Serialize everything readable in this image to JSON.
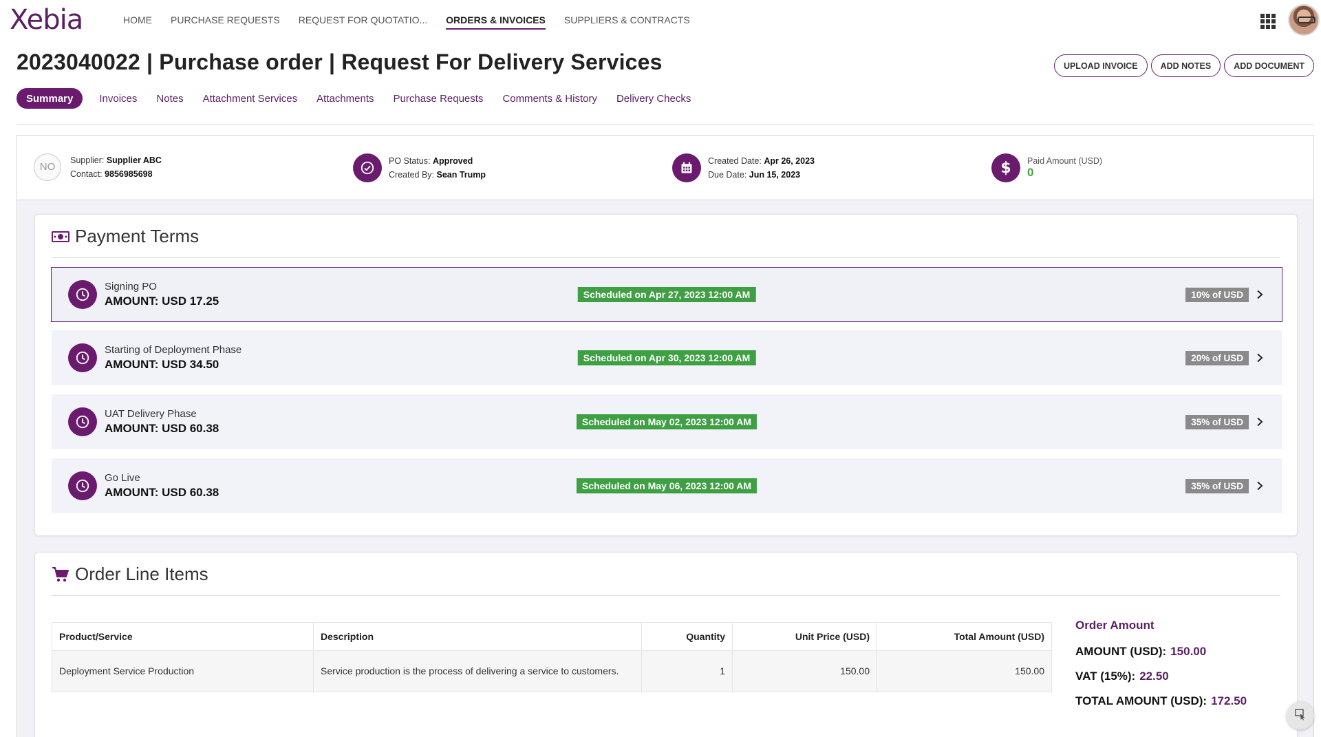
{
  "brand": {
    "logo_text": "Xebia",
    "accent": "#6a1b6e",
    "success": "#3e9f43"
  },
  "nav": {
    "items": [
      {
        "label": "HOME"
      },
      {
        "label": "PURCHASE REQUESTS"
      },
      {
        "label": "REQUEST FOR QUOTATIO..."
      },
      {
        "label": "ORDERS & INVOICES",
        "active": true
      },
      {
        "label": "SUPPLIERS & CONTRACTS"
      }
    ],
    "apps_icon": "grid-icon",
    "avatar_icon": "user-avatar"
  },
  "header": {
    "title": "2023040022 | Purchase order | Request For Delivery Services",
    "actions": [
      "UPLOAD INVOICE",
      "ADD NOTES",
      "ADD DOCUMENT"
    ]
  },
  "tabs": [
    {
      "label": "Summary",
      "active": true
    },
    {
      "label": "Invoices"
    },
    {
      "label": "Notes"
    },
    {
      "label": "Attachment Services"
    },
    {
      "label": "Attachments"
    },
    {
      "label": "Purchase Requests"
    },
    {
      "label": "Comments & History"
    },
    {
      "label": "Delivery Checks"
    }
  ],
  "info": {
    "supplier_logo_text": "NO",
    "supplier_label": "Supplier:",
    "supplier": "Supplier ABC",
    "contact_label": "Contact:",
    "contact": "9856985698",
    "status_label": "PO Status:",
    "status": "Approved",
    "created_by_label": "Created By:",
    "created_by": "Sean Trump",
    "created_date_label": "Created Date:",
    "created_date": "Apr 26, 2023",
    "due_date_label": "Due Date:",
    "due_date": "Jun 15, 2023",
    "paid_label": "Paid Amount (USD)",
    "paid_value": "0"
  },
  "payment_terms": {
    "title": "Payment Terms",
    "items": [
      {
        "name": "Signing PO",
        "amount": "AMOUNT: USD 17.25",
        "scheduled": "Scheduled on Apr 27, 2023 12:00 AM",
        "percent": "10% of USD"
      },
      {
        "name": "Starting of Deployment Phase",
        "amount": "AMOUNT: USD 34.50",
        "scheduled": "Scheduled on Apr 30, 2023 12:00 AM",
        "percent": "20% of USD"
      },
      {
        "name": "UAT Delivery Phase",
        "amount": "AMOUNT: USD 60.38",
        "scheduled": "Scheduled on May 02, 2023 12:00 AM",
        "percent": "35% of USD"
      },
      {
        "name": "Go Live",
        "amount": "AMOUNT: USD 60.38",
        "scheduled": "Scheduled on May 06, 2023 12:00 AM",
        "percent": "35% of USD"
      }
    ]
  },
  "order_lines": {
    "title": "Order Line Items",
    "columns": [
      "Product/Service",
      "Description",
      "Quantity",
      "Unit Price (USD)",
      "Total Amount (USD)"
    ],
    "rows": [
      [
        "Deployment Service Production",
        "Service production is the process of delivering a service to customers.",
        "1",
        "150.00",
        "150.00"
      ]
    ],
    "summary": {
      "title": "Order Amount",
      "amount_label": "AMOUNT (USD):",
      "amount": "150.00",
      "vat_label": "VAT (15%):",
      "vat": "22.50",
      "total_label": "TOTAL AMOUNT (USD):",
      "total": "172.50"
    }
  }
}
